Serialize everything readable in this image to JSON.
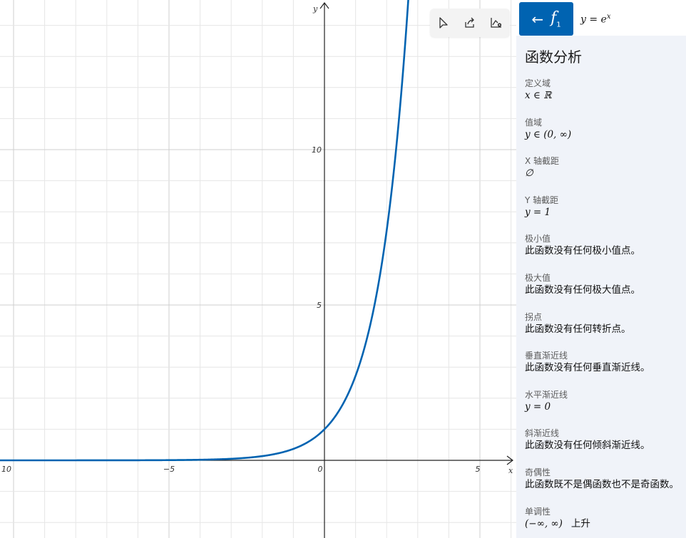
{
  "graph": {
    "x_tick_labels": [
      "10",
      "−5",
      "0",
      "5"
    ],
    "y_tick_labels": [
      "10",
      "5"
    ],
    "x_axis_label": "x",
    "y_axis_label": "y",
    "curve_color": "#0063b1"
  },
  "toolbar": {
    "select_icon": "pointer-icon",
    "share_icon": "share-icon",
    "settings_icon": "graph-settings-icon"
  },
  "panel": {
    "back_icon": "arrow-left-icon",
    "function_name": "f",
    "function_index": "1",
    "expression_base": "y = e",
    "expression_exp": "x",
    "title": "函数分析",
    "properties": [
      {
        "label": "定义域",
        "value": "x ∈ ℝ",
        "math": true
      },
      {
        "label": "值域",
        "value": "y ∈ (0, ∞)",
        "math": true
      },
      {
        "label": "X 轴截距",
        "value": "∅",
        "math": true
      },
      {
        "label": "Y 轴截距",
        "value": "y = 1",
        "math": true
      },
      {
        "label": "极小值",
        "value": "此函数没有任何极小值点。",
        "math": false
      },
      {
        "label": "极大值",
        "value": "此函数没有任何极大值点。",
        "math": false
      },
      {
        "label": "拐点",
        "value": "此函数没有任何转折点。",
        "math": false
      },
      {
        "label": "垂直渐近线",
        "value": "此函数没有任何垂直渐近线。",
        "math": false
      },
      {
        "label": "水平渐近线",
        "value": "y = 0",
        "math": true
      },
      {
        "label": "斜渐近线",
        "value": "此函数没有任何倾斜渐近线。",
        "math": false
      },
      {
        "label": "奇偶性",
        "value": "此函数既不是偶函数也不是奇函数。",
        "math": false
      },
      {
        "label": "单调性",
        "value": "(−∞, ∞)",
        "math": true,
        "extra": "上升"
      }
    ]
  }
}
